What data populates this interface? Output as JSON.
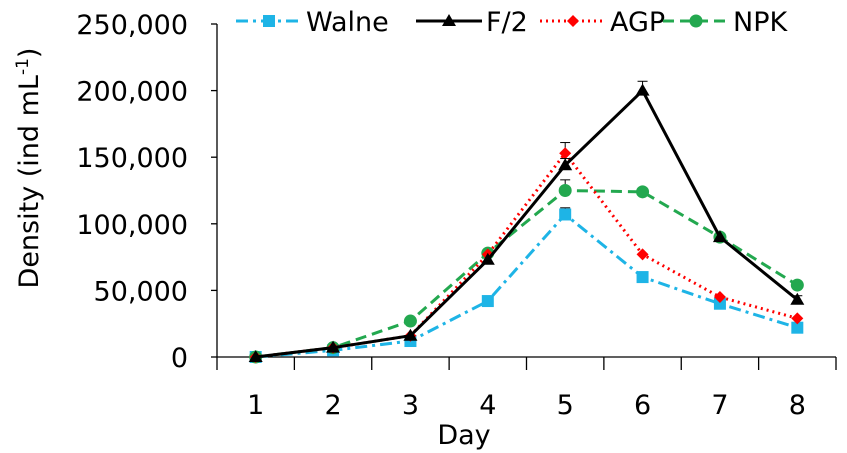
{
  "chart_data": {
    "type": "line",
    "title": "",
    "xlabel": "Day",
    "ylabel": "Density (ind mL-1)",
    "ylabel_main": "Density (ind mL",
    "ylabel_sup": "-1",
    "ylabel_close": ")",
    "categories": [
      "1",
      "2",
      "3",
      "4",
      "5",
      "6",
      "7",
      "8"
    ],
    "x": [
      1,
      2,
      3,
      4,
      5,
      6,
      7,
      8
    ],
    "ylim": [
      0,
      250000
    ],
    "yticks": [
      0,
      50000,
      100000,
      150000,
      200000,
      250000
    ],
    "ytick_labels": [
      "0",
      "50,000",
      "100,000",
      "150,000",
      "200,000",
      "250,000"
    ],
    "grid": false,
    "legend_position": "top",
    "series": [
      {
        "name": "Walne",
        "values": [
          0,
          5000,
          12000,
          42000,
          107000,
          60000,
          40000,
          22000
        ],
        "errors": [
          0,
          0,
          0,
          0,
          5000,
          0,
          0,
          0
        ],
        "color": "#1eb4e6",
        "marker": "square",
        "dash": "dashdot"
      },
      {
        "name": "F/2",
        "values": [
          0,
          7000,
          16000,
          73000,
          144000,
          200000,
          90000,
          43000
        ],
        "errors": [
          0,
          0,
          0,
          0,
          5000,
          7000,
          0,
          3000
        ],
        "color": "#000000",
        "marker": "triangle",
        "dash": "solid"
      },
      {
        "name": "AGP",
        "values": [
          0,
          7000,
          16000,
          77000,
          153000,
          77000,
          45000,
          29000
        ],
        "errors": [
          0,
          0,
          0,
          0,
          8000,
          0,
          0,
          0
        ],
        "color": "#ff0000",
        "marker": "diamond",
        "dash": "dotted"
      },
      {
        "name": "NPK",
        "values": [
          0,
          7000,
          27000,
          78000,
          125000,
          124000,
          90000,
          54000
        ],
        "errors": [
          0,
          0,
          0,
          0,
          8000,
          0,
          0,
          0
        ],
        "color": "#23a84f",
        "marker": "circle",
        "dash": "dashed"
      }
    ]
  }
}
